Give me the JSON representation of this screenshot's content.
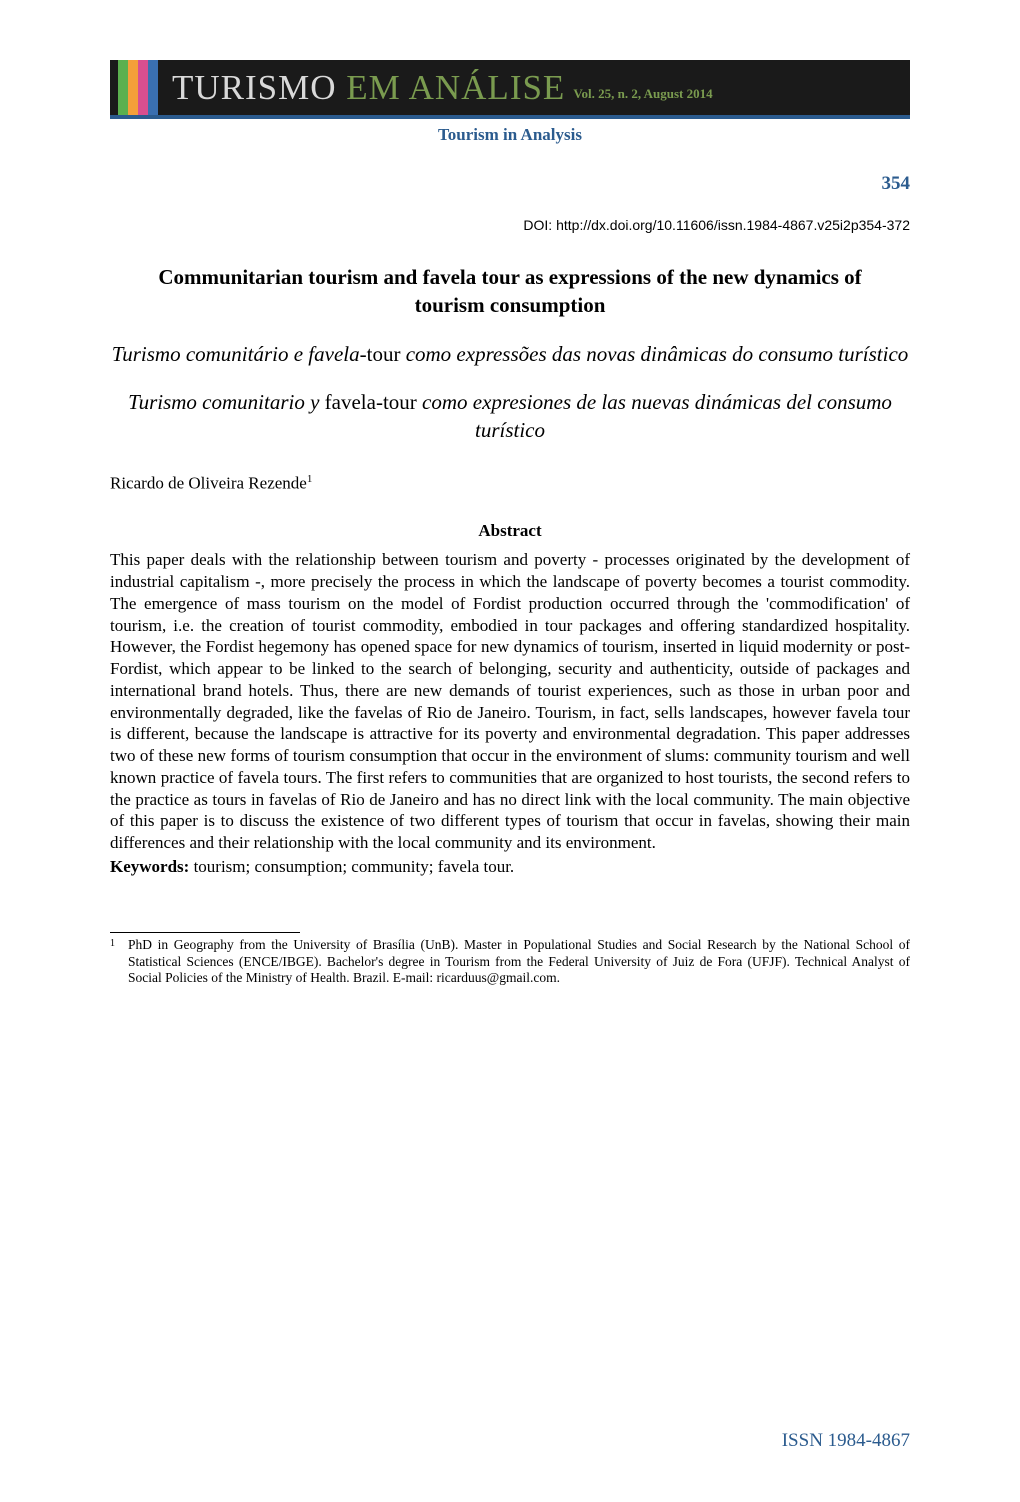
{
  "banner": {
    "journal_title_part1": "TURISMO",
    "journal_title_em": "EM",
    "journal_title_part2": "ANÁLISE",
    "vol_info": "Vol. 25, n. 2, August 2014",
    "logo_colors": [
      "#5bb04f",
      "#f4a03a",
      "#d94f8f",
      "#3a6fb0"
    ],
    "background_color": "#1a1a1a",
    "underline_color": "#2b5b8e",
    "subtitle": "Tourism in Analysis",
    "subtitle_color": "#2b5b8e"
  },
  "page_number": "354",
  "doi": "DOI: http://dx.doi.org/10.11606/issn.1984-4867.v25i2p354-372",
  "title_en": "Communitarian tourism and favela tour as expressions of the new dynamics of tourism consumption",
  "title_pt_italic_1": "Turismo comunitário e favela-",
  "title_pt_roman": "tour",
  "title_pt_italic_2": " como expressões das novas dinâmicas do consumo turístico",
  "title_es_italic_1": "Turismo comunitario y ",
  "title_es_roman": "favela-tour",
  "title_es_italic_2": " como expresiones de las nuevas dinámicas del consumo turístico",
  "author": "Ricardo de Oliveira Rezende",
  "author_marker": "1",
  "abstract_heading": "Abstract",
  "abstract": "This paper deals with the relationship between tourism and poverty - processes originated by the development of industrial capitalism -, more precisely the process in which the landscape of poverty becomes a tourist commodity. The emergence of mass tourism on the model of Fordist production occurred through the 'commodification' of tourism, i.e. the creation of tourist commodity, embodied in tour packages and offering standardized hospitality. However, the Fordist hegemony has opened space for new dynamics of tourism, inserted in liquid modernity or post-Fordist, which appear to be linked to the search of belonging, security and authenticity, outside of packages and international brand hotels. Thus, there are new demands of tourist experiences, such as those in urban poor and environmentally degraded, like the favelas of Rio de Janeiro. Tourism, in fact, sells landscapes, however favela tour is different, because the landscape is attractive for its poverty and environmental degradation. This paper addresses two of these new forms of tourism consumption that occur in the environment of slums: community tourism and well known practice of favela tours. The first refers to communities that are organized to host tourists, the second refers to the practice as tours in favelas of Rio de Janeiro and has no direct link with the local community. The main objective of this paper  is to discuss the existence of two different types of tourism that occur in favelas, showing their main differences and their relationship with the local community and its environment.",
  "keywords_label": "Keywords:",
  "keywords": " tourism; consumption; community; favela tour.",
  "footnote_marker": "1",
  "footnote": "PhD in Geography from the University of Brasília (UnB). Master in Populational Studies and Social Research by the National School of Statistical Sciences (ENCE/IBGE). Bachelor's degree in Tourism from the Federal University of Juiz de Fora (UFJF). Technical Analyst of Social Policies of the Ministry of Health. Brazil. E-mail: ricarduus@gmail.com.",
  "issn": "ISSN 1984-4867",
  "colors": {
    "accent_blue": "#2b5b8e",
    "text": "#000000",
    "background": "#ffffff"
  },
  "fonts": {
    "body_family": "Times New Roman",
    "body_size_pt": 12,
    "title_size_pt": 15,
    "doi_family": "Arial",
    "doi_size_pt": 10,
    "footnote_size_pt": 9.5
  }
}
